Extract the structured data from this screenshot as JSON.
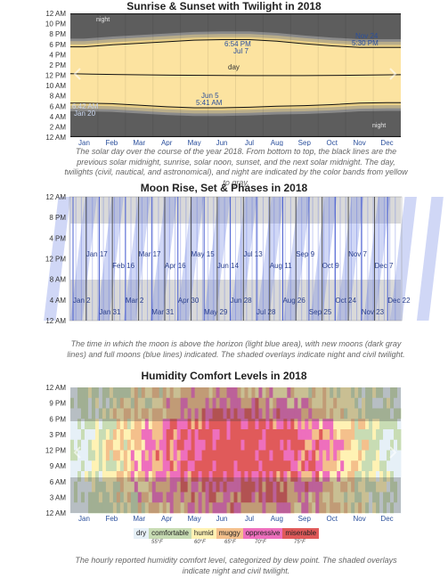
{
  "months": [
    "Jan",
    "Feb",
    "Mar",
    "Apr",
    "May",
    "Jun",
    "Jul",
    "Aug",
    "Sep",
    "Oct",
    "Nov",
    "Dec"
  ],
  "chart_data": [
    {
      "type": "area",
      "title": "Sunrise & Sunset with Twilight in 2018",
      "ylim": [
        0,
        24
      ],
      "yticks": [
        "12 AM",
        "2 AM",
        "4 AM",
        "6 AM",
        "8 AM",
        "10 AM",
        "12 PM",
        "2 PM",
        "4 PM",
        "6 PM",
        "8 PM",
        "10 PM",
        "12 AM"
      ],
      "sunrise_hours": [
        6.6,
        6.5,
        6.2,
        5.9,
        5.7,
        5.7,
        5.8,
        6.0,
        6.1,
        6.3,
        6.6,
        6.7
      ],
      "sunset_hours": [
        17.5,
        17.9,
        18.2,
        18.5,
        18.8,
        18.9,
        18.9,
        18.6,
        18.1,
        17.7,
        17.4,
        17.4
      ],
      "labels": {
        "night_top": "night",
        "day": "day",
        "night_bottom": "night",
        "sunset_latest_time": "6:54 PM",
        "sunset_latest_date": "Jul 7",
        "sunset_earliest_date": "Nov 24",
        "sunset_earliest_time": "5:30 PM",
        "sunrise_earliest_date": "Jun 5",
        "sunrise_earliest_time": "5:41 AM",
        "sunrise_latest_time": "6:42 AM",
        "sunrise_latest_date": "Jan 20"
      },
      "caption": "The solar day over the course of the year 2018. From bottom to top, the black lines are the previous solar midnight, sunrise, solar noon, sunset, and the next solar midnight. The day, twilights (civil, nautical, and astronomical), and night are indicated by the color bands from yellow to gray."
    },
    {
      "type": "area",
      "title": "Moon Rise, Set & Phases in 2018",
      "yticks": [
        "12 AM",
        "4 AM",
        "8 AM",
        "12 PM",
        "4 PM",
        "8 PM",
        "12 AM"
      ],
      "full_moons": [
        "Jan 2",
        "Jan 31",
        "Mar 2",
        "Mar 31",
        "Apr 30",
        "May 29",
        "Jun 28",
        "Jul 28",
        "Aug 26",
        "Sep 25",
        "Oct 24",
        "Nov 23",
        "Dec 22"
      ],
      "new_moons": [
        "Jan 17",
        "Feb 16",
        "Mar 17",
        "Apr 16",
        "May 15",
        "Jun 14",
        "Jul 13",
        "Aug 11",
        "Sep 9",
        "Oct 9",
        "Nov 7",
        "Dec 7"
      ],
      "caption": "The time in which the moon is above the horizon (light blue area), with new moons (dark gray lines) and full moons (blue lines) indicated. The shaded overlays indicate night and civil twilight."
    },
    {
      "type": "heatmap",
      "title": "Humidity Comfort Levels in 2018",
      "yticks": [
        "12 AM",
        "3 AM",
        "6 AM",
        "9 AM",
        "12 PM",
        "3 PM",
        "6 PM",
        "9 PM",
        "12 AM"
      ],
      "legend": [
        {
          "label": "dry",
          "color": "#e6f0f7"
        },
        {
          "label": "comfortable",
          "color": "#c8dcb4"
        },
        {
          "label": "humid",
          "color": "#fff2b4"
        },
        {
          "label": "muggy",
          "color": "#f4c08c"
        },
        {
          "label": "oppressive",
          "color": "#ee6fbd"
        },
        {
          "label": "miserable",
          "color": "#e05a5a"
        }
      ],
      "thresholds": [
        "55°F",
        "60°F",
        "65°F",
        "70°F",
        "75°F"
      ],
      "caption": "The hourly reported humidity comfort level, categorized by dew point. The shaded overlays indicate night and civil twilight."
    }
  ]
}
